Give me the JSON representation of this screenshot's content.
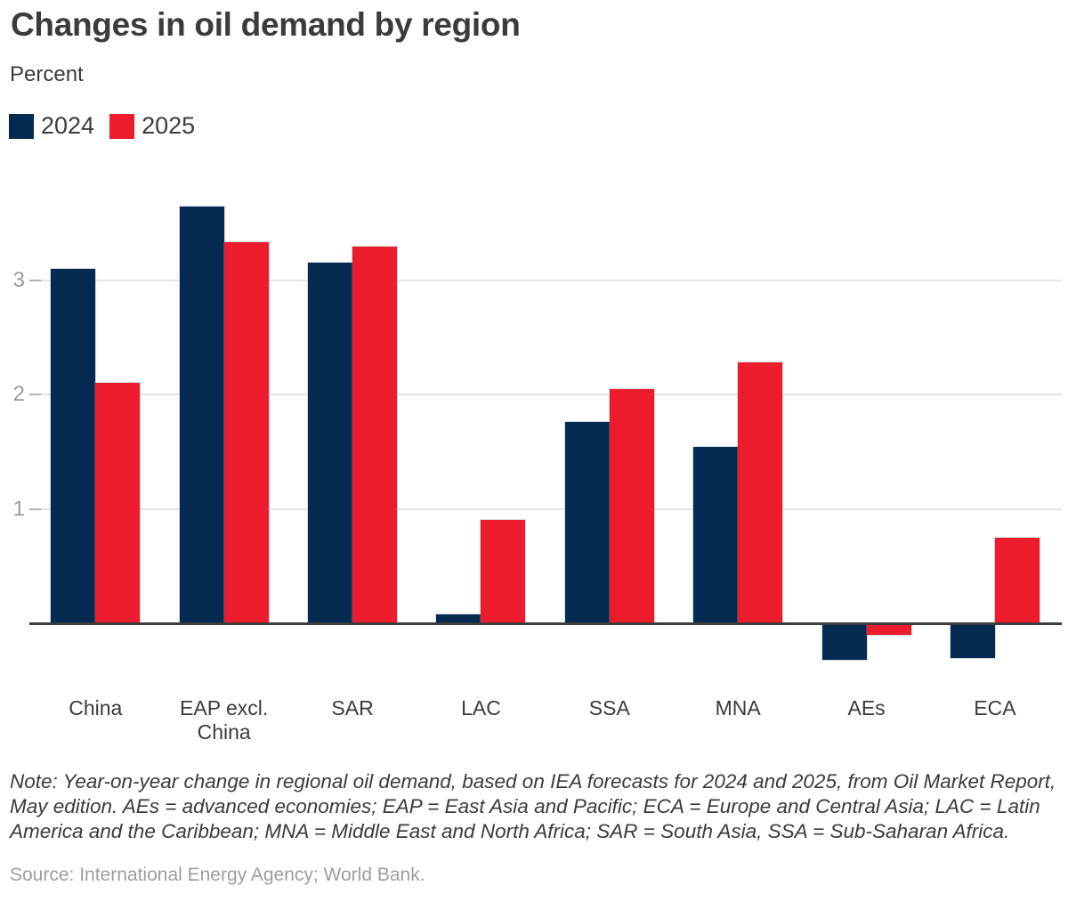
{
  "header": {
    "title": "Changes in oil demand by region",
    "subtitle": "Percent"
  },
  "chart_data": {
    "type": "bar",
    "title": "Changes in oil demand by region",
    "unit_label": "Percent",
    "categories": [
      "China",
      "EAP excl. China",
      "SAR",
      "LAC",
      "SSA",
      "MNA",
      "AEs",
      "ECA"
    ],
    "series": [
      {
        "name": "2024",
        "color": "#042a52",
        "values": [
          3.1,
          3.64,
          3.15,
          0.08,
          1.76,
          1.54,
          -0.32,
          -0.3
        ]
      },
      {
        "name": "2025",
        "color": "#ec1c2d",
        "values": [
          2.1,
          3.33,
          3.29,
          0.9,
          2.05,
          2.28,
          -0.1,
          0.75
        ]
      }
    ],
    "yticks": [
      1,
      2,
      3
    ],
    "ylim": [
      -0.55,
      4.0
    ],
    "grid": true,
    "legend_position": "top-left",
    "xlabel": "",
    "ylabel": "Percent"
  },
  "colors": {
    "series_2024": "#042a52",
    "series_2025": "#ec1c2d",
    "text": "#3b3b3b",
    "muted_text": "#9c9c9c",
    "gridline": "#e4e4e4",
    "axis_line": "#3c3c3c"
  },
  "footer": {
    "note": "Note: Year-on-year change in regional oil demand, based on IEA forecasts for 2024 and 2025, from Oil Market Report, May edition. AEs = advanced economies; EAP = East Asia and Pacific; ECA = Europe and Central Asia; LAC = Latin America and the Caribbean; MNA = Middle East and North Africa; SAR = South Asia, SSA = Sub-Saharan Africa.",
    "source": "Source: International Energy Agency; World Bank."
  }
}
